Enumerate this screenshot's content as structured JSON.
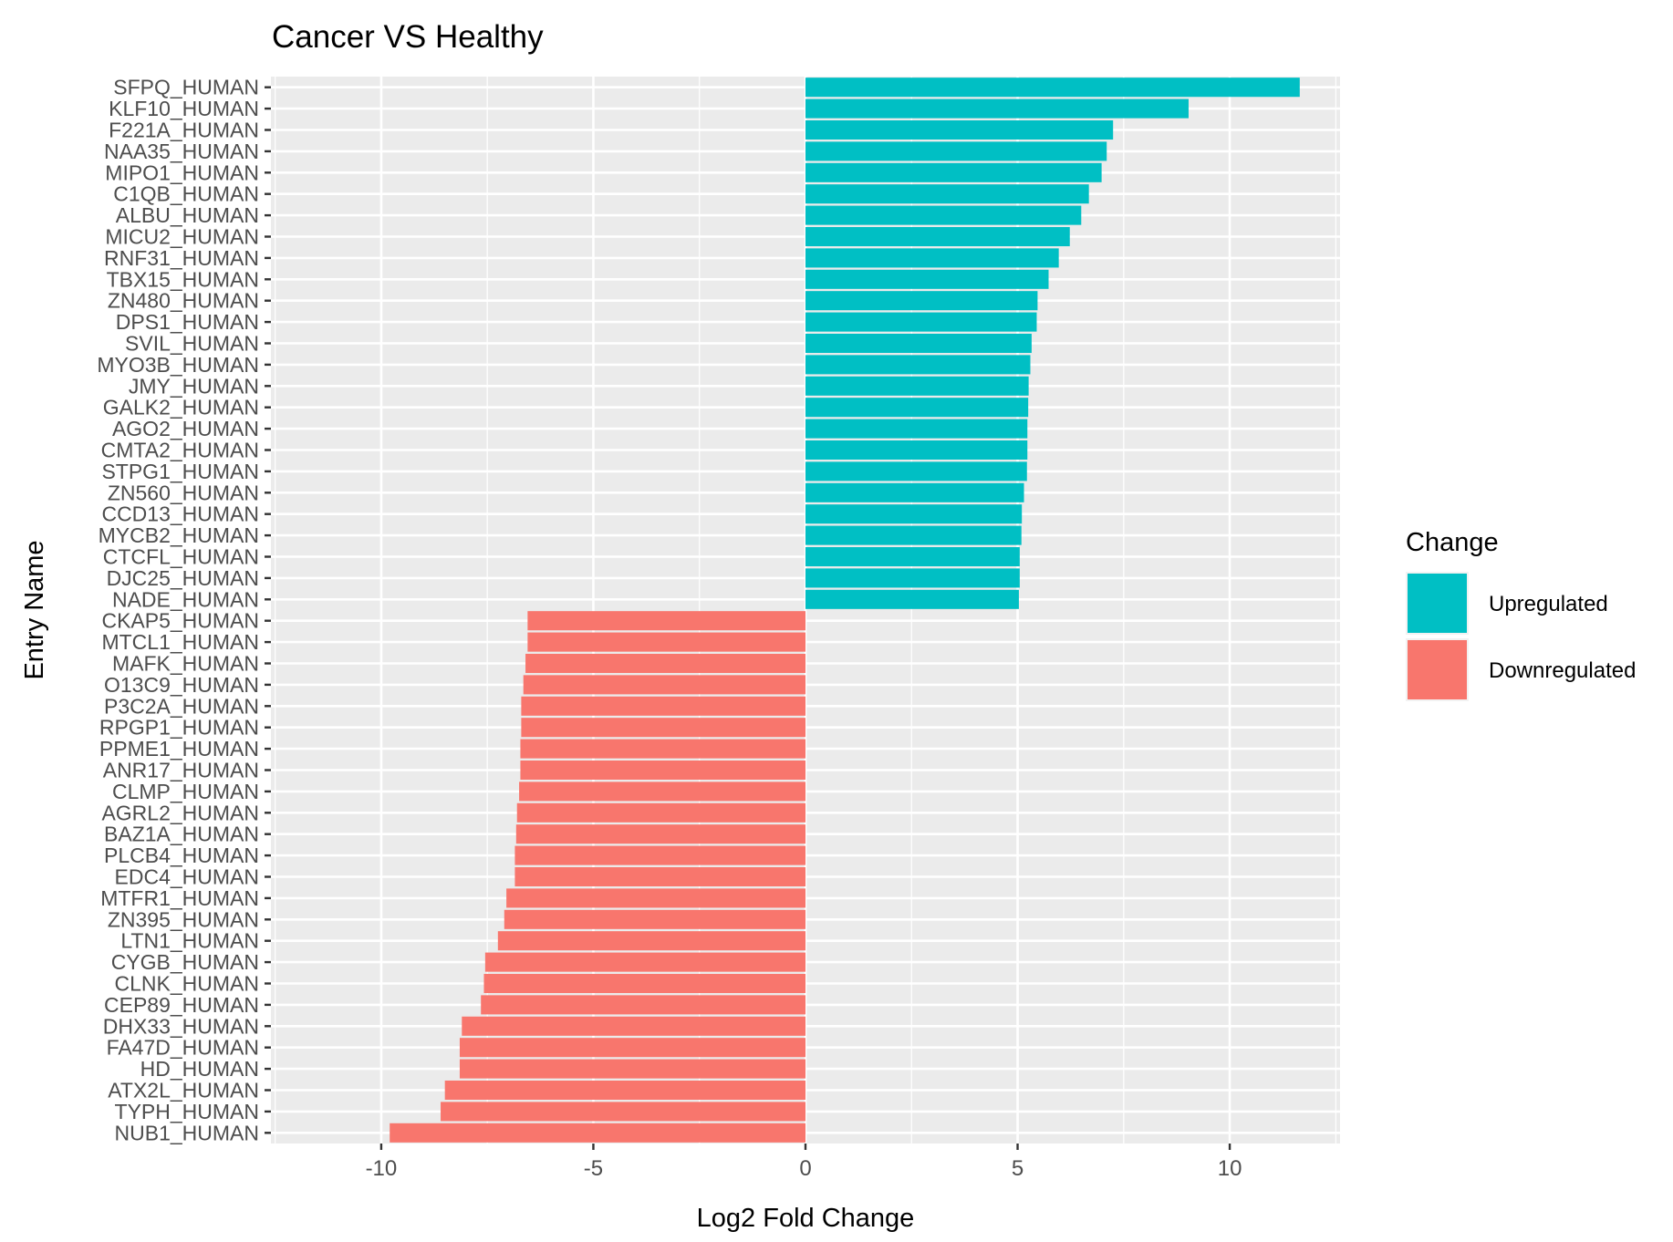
{
  "chart_data": {
    "type": "bar",
    "orientation": "horizontal",
    "title": "Cancer VS Healthy",
    "xlabel": "Log2 Fold Change",
    "ylabel": "Entry Name",
    "xlim": [
      -12.6,
      12.6
    ],
    "xticks": [
      -10,
      -5,
      0,
      5,
      10
    ],
    "grid": true,
    "legend_position": "right",
    "legend_title": "Change",
    "colors": {
      "panel": "#ebebeb",
      "grid": "#ffffff",
      "Upregulated": "#00bfc4",
      "Downregulated": "#f8766d"
    },
    "series": [
      {
        "name": "Upregulated",
        "color": "#00bfc4"
      },
      {
        "name": "Downregulated",
        "color": "#f8766d"
      }
    ],
    "categories": [
      "SFPQ_HUMAN",
      "KLF10_HUMAN",
      "F221A_HUMAN",
      "NAA35_HUMAN",
      "MIPO1_HUMAN",
      "C1QB_HUMAN",
      "ALBU_HUMAN",
      "MICU2_HUMAN",
      "RNF31_HUMAN",
      "TBX15_HUMAN",
      "ZN480_HUMAN",
      "DPS1_HUMAN",
      "SVIL_HUMAN",
      "MYO3B_HUMAN",
      "JMY_HUMAN",
      "GALK2_HUMAN",
      "AGO2_HUMAN",
      "CMTA2_HUMAN",
      "STPG1_HUMAN",
      "ZN560_HUMAN",
      "CCD13_HUMAN",
      "MYCB2_HUMAN",
      "CTCFL_HUMAN",
      "DJC25_HUMAN",
      "NADE_HUMAN",
      "CKAP5_HUMAN",
      "MTCL1_HUMAN",
      "MAFK_HUMAN",
      "O13C9_HUMAN",
      "P3C2A_HUMAN",
      "RPGP1_HUMAN",
      "PPME1_HUMAN",
      "ANR17_HUMAN",
      "CLMP_HUMAN",
      "AGRL2_HUMAN",
      "BAZ1A_HUMAN",
      "PLCB4_HUMAN",
      "EDC4_HUMAN",
      "MTFR1_HUMAN",
      "ZN395_HUMAN",
      "LTN1_HUMAN",
      "CYGB_HUMAN",
      "CLNK_HUMAN",
      "CEP89_HUMAN",
      "DHX33_HUMAN",
      "FA47D_HUMAN",
      "HD_HUMAN",
      "ATX2L_HUMAN",
      "TYPH_HUMAN",
      "NUB1_HUMAN"
    ],
    "values": [
      11.65,
      9.03,
      7.25,
      7.1,
      6.98,
      6.68,
      6.5,
      6.23,
      5.97,
      5.73,
      5.47,
      5.45,
      5.33,
      5.3,
      5.26,
      5.25,
      5.23,
      5.23,
      5.22,
      5.15,
      5.1,
      5.09,
      5.05,
      5.05,
      5.03,
      -6.55,
      -6.55,
      -6.6,
      -6.65,
      -6.7,
      -6.7,
      -6.72,
      -6.72,
      -6.75,
      -6.8,
      -6.82,
      -6.85,
      -6.85,
      -7.05,
      -7.1,
      -7.25,
      -7.55,
      -7.58,
      -7.65,
      -8.1,
      -8.15,
      -8.15,
      -8.5,
      -8.6,
      -9.8
    ],
    "groups": [
      "Upregulated",
      "Upregulated",
      "Upregulated",
      "Upregulated",
      "Upregulated",
      "Upregulated",
      "Upregulated",
      "Upregulated",
      "Upregulated",
      "Upregulated",
      "Upregulated",
      "Upregulated",
      "Upregulated",
      "Upregulated",
      "Upregulated",
      "Upregulated",
      "Upregulated",
      "Upregulated",
      "Upregulated",
      "Upregulated",
      "Upregulated",
      "Upregulated",
      "Upregulated",
      "Upregulated",
      "Upregulated",
      "Downregulated",
      "Downregulated",
      "Downregulated",
      "Downregulated",
      "Downregulated",
      "Downregulated",
      "Downregulated",
      "Downregulated",
      "Downregulated",
      "Downregulated",
      "Downregulated",
      "Downregulated",
      "Downregulated",
      "Downregulated",
      "Downregulated",
      "Downregulated",
      "Downregulated",
      "Downregulated",
      "Downregulated",
      "Downregulated",
      "Downregulated",
      "Downregulated",
      "Downregulated",
      "Downregulated",
      "Downregulated"
    ]
  }
}
